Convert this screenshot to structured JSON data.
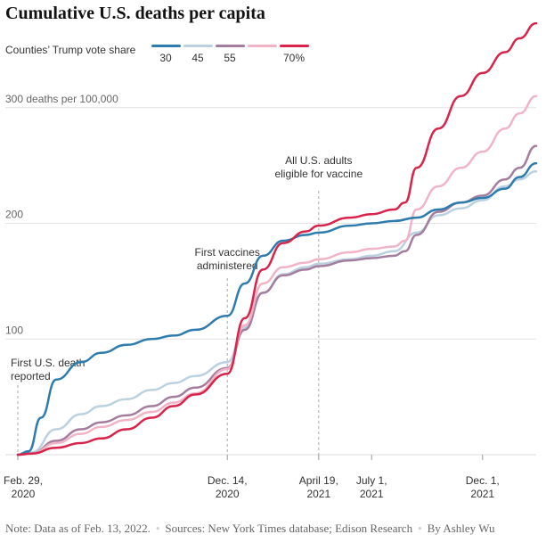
{
  "title": "Cumulative U.S. deaths per capita",
  "legend": {
    "label": "Counties’ Trump vote share",
    "items": [
      {
        "label": "30",
        "color": "#2e7cae"
      },
      {
        "label": "45",
        "color": "#bcd1e0"
      },
      {
        "label": "55",
        "color": "#a47d9e"
      },
      {
        "label": "",
        "color": "#f0b4c6"
      },
      {
        "label": "70%",
        "color": "#d8234a"
      }
    ]
  },
  "note": {
    "text": "Note: Data as of Feb. 13, 2022.",
    "sources": "Sources: New York Times database; Edison Research",
    "byline": "By Ashley Wu"
  },
  "chart_data": {
    "type": "line",
    "ylim": [
      0,
      370
    ],
    "y_ticks": [
      {
        "value": 100,
        "label": "100"
      },
      {
        "value": 200,
        "label": "200"
      },
      {
        "value": 300,
        "label": "300 deaths per 100,000"
      }
    ],
    "x_domain": [
      "2020-02-29",
      "2022-02-13"
    ],
    "x_ticks": [
      {
        "date": "2020-02-29",
        "line1": "Feb. 29,",
        "line2": "2020"
      },
      {
        "date": "2020-12-14",
        "line1": "Dec. 14,",
        "line2": "2020"
      },
      {
        "date": "2021-04-19",
        "line1": "April 19,",
        "line2": "2021"
      },
      {
        "date": "2021-07-01",
        "line1": "July 1,",
        "line2": "2021"
      },
      {
        "date": "2021-12-01",
        "line1": "Dec. 1,",
        "line2": "2021"
      }
    ],
    "annotations": [
      {
        "date": "2020-02-29",
        "lines": [
          "First U.S. death",
          "reported"
        ],
        "anchor": "start"
      },
      {
        "date": "2020-12-14",
        "lines": [
          "First vaccines",
          "administered"
        ],
        "anchor": "middle"
      },
      {
        "date": "2021-04-19",
        "lines": [
          "All U.S. adults",
          "eligible for vaccine"
        ],
        "anchor": "middle"
      }
    ],
    "series": [
      {
        "name": "45",
        "color": "#bcd1e0",
        "x": [
          "2020-02-29",
          "2020-03-19",
          "2020-04-22",
          "2020-05-26",
          "2020-06-23",
          "2020-07-28",
          "2020-09-01",
          "2020-10-01",
          "2020-10-31",
          "2020-12-14",
          "2021-01-07",
          "2021-02-01",
          "2021-03-01",
          "2021-04-01",
          "2021-04-19",
          "2021-06-01",
          "2021-07-01",
          "2021-08-01",
          "2021-09-01",
          "2021-10-01",
          "2021-11-01",
          "2021-12-01",
          "2022-01-01",
          "2022-01-21",
          "2022-02-13"
        ],
        "y": [
          0,
          2,
          22,
          35,
          42,
          48,
          56,
          62,
          68,
          80,
          110,
          140,
          156,
          162,
          165,
          169,
          172,
          176,
          192,
          207,
          213,
          220,
          232,
          238,
          245
        ]
      },
      {
        "name": "55",
        "color": "#a47d9e",
        "x": [
          "2020-02-29",
          "2020-03-19",
          "2020-04-22",
          "2020-05-26",
          "2020-06-23",
          "2020-07-28",
          "2020-09-01",
          "2020-10-01",
          "2020-10-31",
          "2020-12-14",
          "2021-01-07",
          "2021-02-01",
          "2021-03-01",
          "2021-04-01",
          "2021-04-19",
          "2021-06-01",
          "2021-07-01",
          "2021-08-01",
          "2021-08-16",
          "2021-09-01",
          "2021-10-01",
          "2021-11-01",
          "2021-12-01",
          "2022-01-01",
          "2022-01-21",
          "2022-02-13"
        ],
        "y": [
          0,
          1,
          12,
          22,
          28,
          34,
          42,
          50,
          58,
          75,
          108,
          140,
          155,
          160,
          163,
          168,
          170,
          172,
          176,
          190,
          210,
          218,
          224,
          238,
          248,
          267
        ]
      },
      {
        "name": "",
        "color": "#f0b4c6",
        "x": [
          "2020-02-29",
          "2020-03-19",
          "2020-04-22",
          "2020-05-26",
          "2020-06-23",
          "2020-07-28",
          "2020-09-01",
          "2020-10-01",
          "2020-10-31",
          "2020-12-14",
          "2021-01-07",
          "2021-02-01",
          "2021-03-01",
          "2021-04-01",
          "2021-04-19",
          "2021-06-01",
          "2021-07-01",
          "2021-08-01",
          "2021-08-16",
          "2021-09-01",
          "2021-10-01",
          "2021-11-01",
          "2021-12-01",
          "2022-01-01",
          "2022-01-21",
          "2022-02-13"
        ],
        "y": [
          0,
          1,
          10,
          18,
          24,
          30,
          37,
          45,
          53,
          74,
          112,
          148,
          162,
          166,
          169,
          175,
          178,
          180,
          185,
          212,
          232,
          248,
          262,
          282,
          295,
          310
        ]
      },
      {
        "name": "30",
        "color": "#2e7cae",
        "x": [
          "2020-02-29",
          "2020-03-15",
          "2020-04-01",
          "2020-04-22",
          "2020-05-26",
          "2020-06-23",
          "2020-07-28",
          "2020-09-01",
          "2020-10-01",
          "2020-10-31",
          "2020-12-14",
          "2021-01-07",
          "2021-02-01",
          "2021-03-01",
          "2021-04-01",
          "2021-04-19",
          "2021-06-01",
          "2021-07-01",
          "2021-08-01",
          "2021-09-01",
          "2021-10-01",
          "2021-11-01",
          "2021-12-01",
          "2022-01-01",
          "2022-01-21",
          "2022-02-13"
        ],
        "y": [
          0,
          3,
          32,
          65,
          80,
          88,
          95,
          100,
          103,
          108,
          120,
          148,
          172,
          185,
          190,
          192,
          198,
          200,
          202,
          205,
          212,
          218,
          222,
          230,
          240,
          252
        ]
      },
      {
        "name": "70%",
        "color": "#d8234a",
        "x": [
          "2020-02-29",
          "2020-03-19",
          "2020-04-22",
          "2020-05-26",
          "2020-06-23",
          "2020-07-28",
          "2020-09-01",
          "2020-10-01",
          "2020-10-31",
          "2020-12-14",
          "2021-01-07",
          "2021-02-01",
          "2021-03-01",
          "2021-04-01",
          "2021-04-19",
          "2021-06-01",
          "2021-07-01",
          "2021-08-01",
          "2021-08-16",
          "2021-09-01",
          "2021-10-01",
          "2021-11-01",
          "2021-12-01",
          "2022-01-01",
          "2022-01-21",
          "2022-02-13"
        ],
        "y": [
          0,
          1,
          6,
          10,
          14,
          22,
          32,
          42,
          52,
          70,
          118,
          160,
          183,
          193,
          198,
          205,
          208,
          212,
          218,
          248,
          282,
          310,
          330,
          348,
          360,
          373
        ]
      }
    ]
  }
}
